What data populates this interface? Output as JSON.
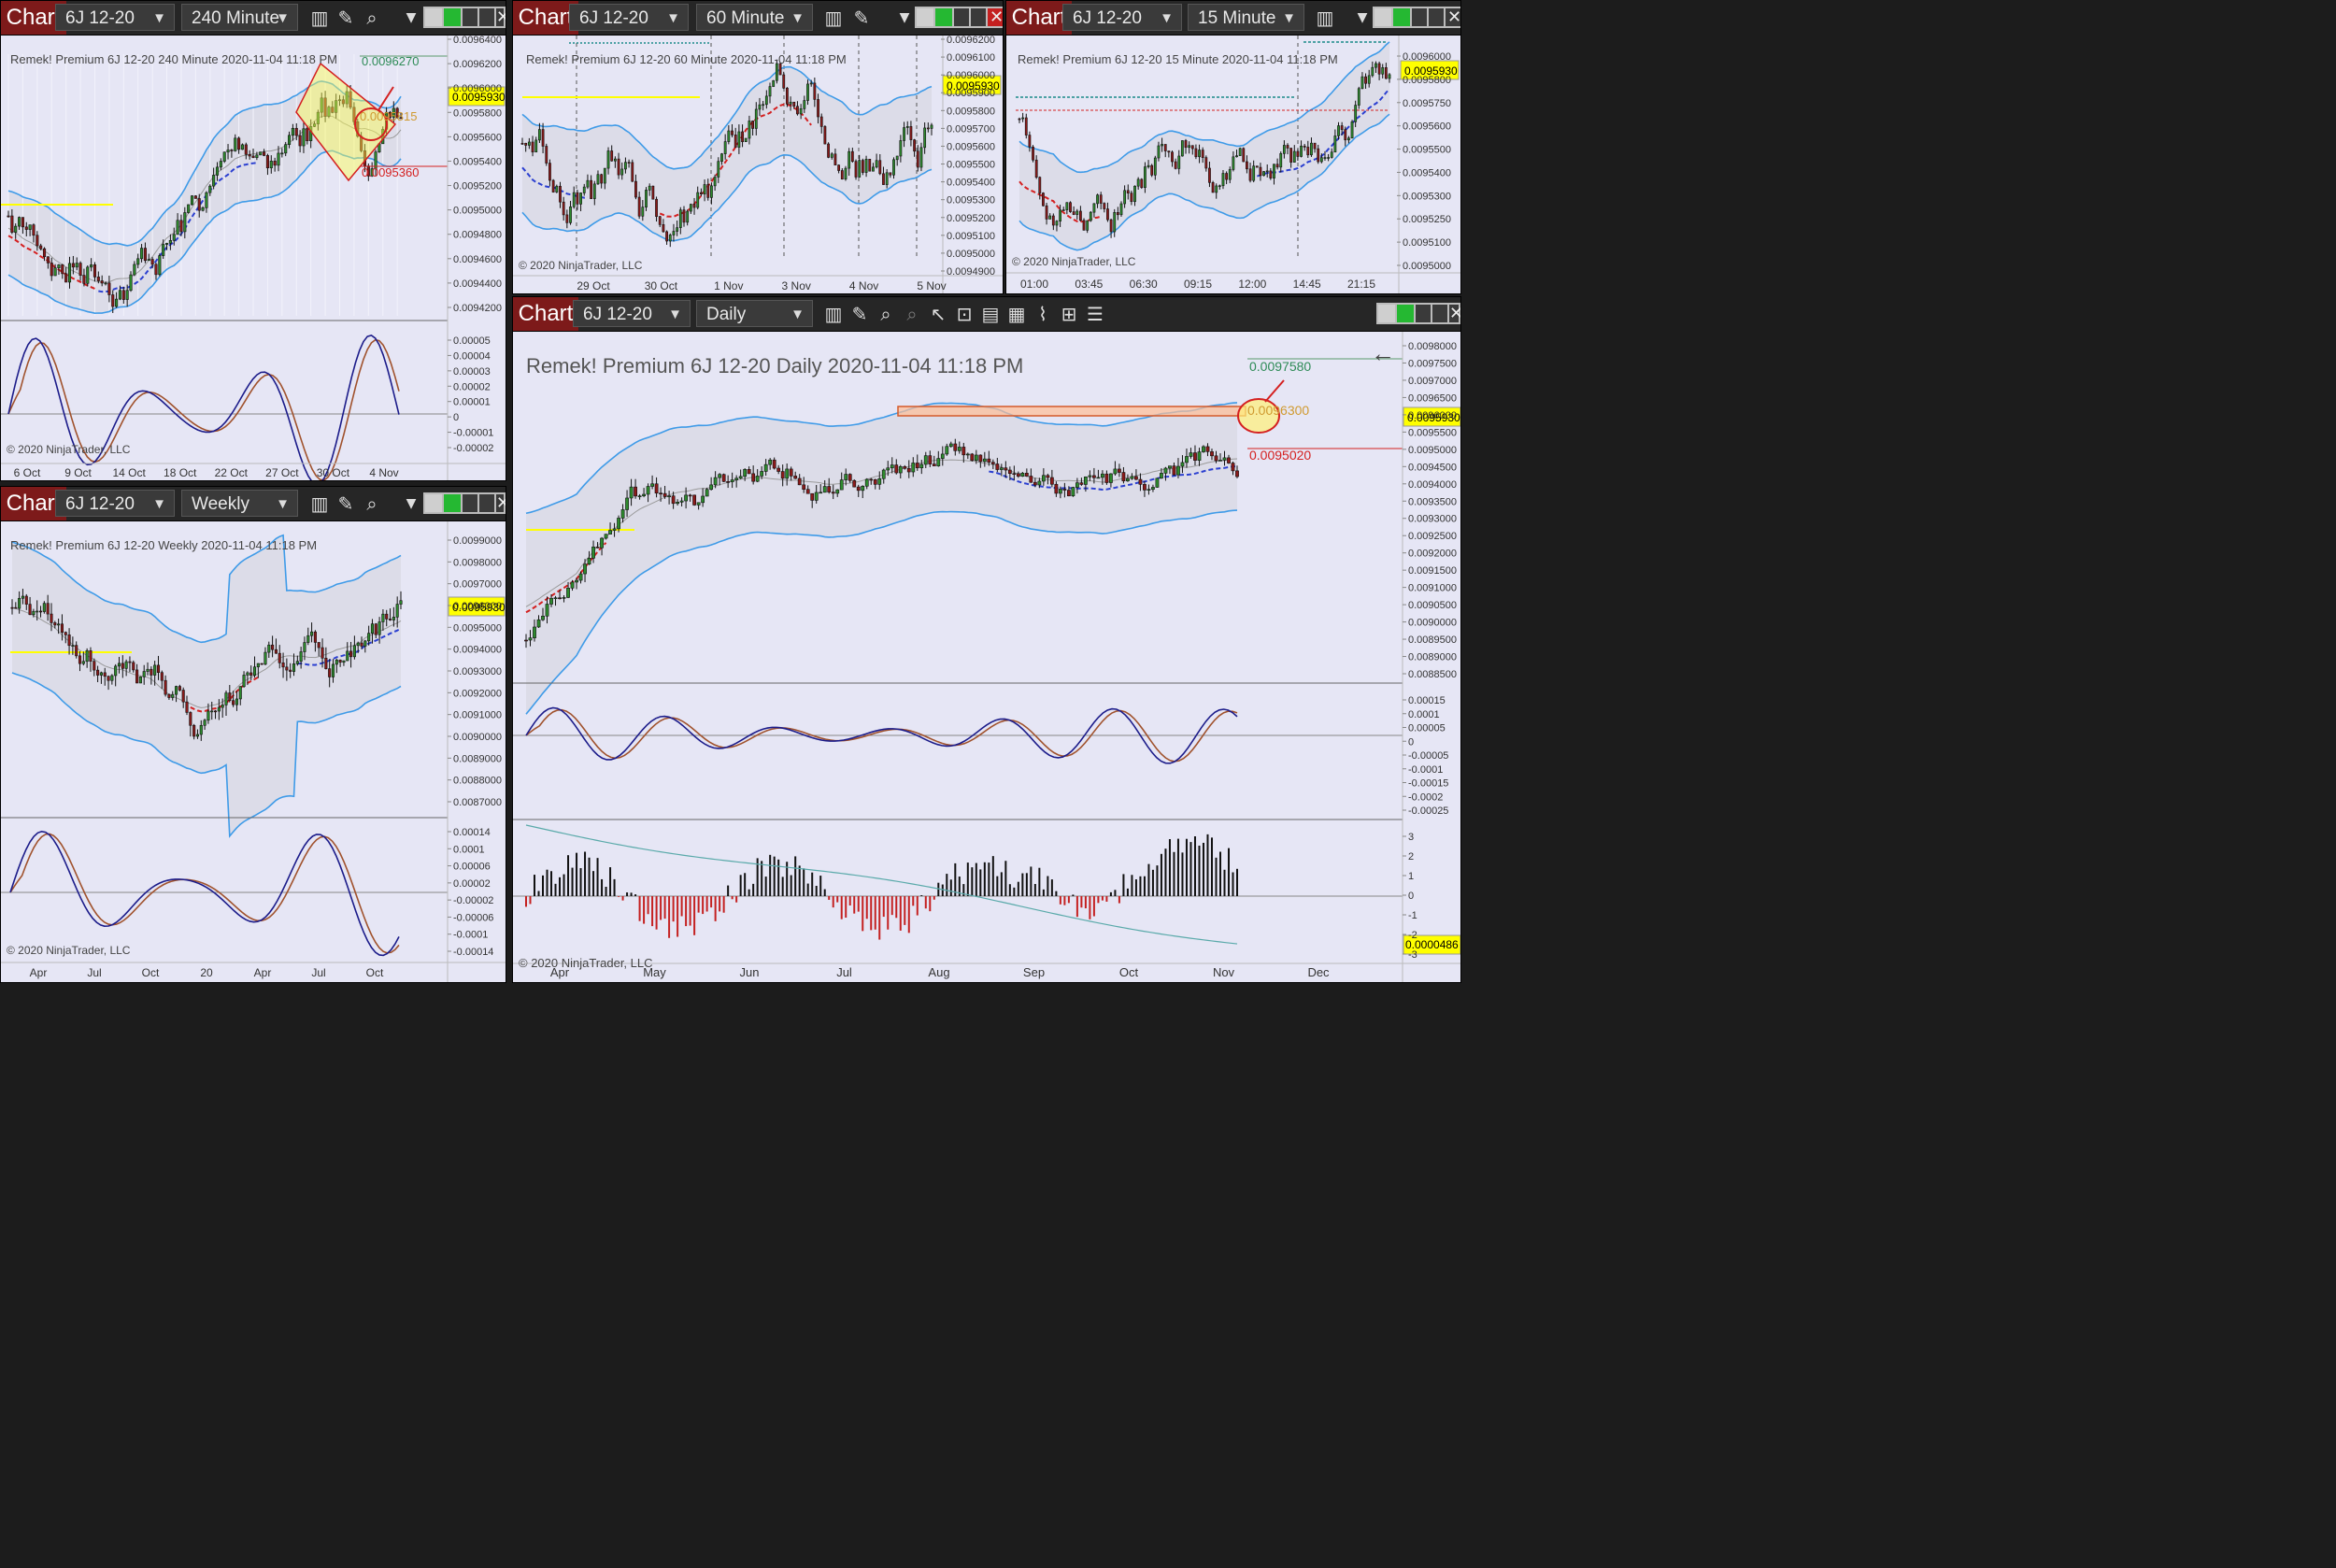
{
  "toolbar": {
    "chart_label": "Chart",
    "instrument": "6J 12-20"
  },
  "windows": {
    "w240": {
      "period": "240 Minute",
      "header": "Remek!  Premium  6J 12-20  240 Minute  2020-11-04 11:18 PM",
      "copyright": "© 2020 NinjaTrader, LLC",
      "price_labels": [
        "0.0096400",
        "0.0096200",
        "0.0096000",
        "0.0095800",
        "0.0095600",
        "0.0095400",
        "0.0095200",
        "0.0095000",
        "0.0094800",
        "0.0094600",
        "0.0094400",
        "0.0094200"
      ],
      "osc_labels": [
        "0.00005",
        "0.00004",
        "0.00003",
        "0.00002",
        "0.00001",
        "0",
        "-0.00001",
        "-0.00002"
      ],
      "x_labels": [
        "6 Oct",
        "9 Oct",
        "14 Oct",
        "18 Oct",
        "22 Oct",
        "27 Oct",
        "30 Oct",
        "4 Nov"
      ],
      "current_price": "0.0095930",
      "target_high": "0.0096270",
      "mid_level": "0.0095815",
      "target_low": "0.0095360"
    },
    "w60": {
      "period": "60 Minute",
      "header": "Remek!  Premium  6J 12-20  60 Minute  2020-11-04 11:18 PM",
      "copyright": "© 2020 NinjaTrader, LLC",
      "price_labels": [
        "0.0096200",
        "0.0096100",
        "0.0096000",
        "0.0095900",
        "0.0095800",
        "0.0095700",
        "0.0095600",
        "0.0095500",
        "0.0095400",
        "0.0095300",
        "0.0095200",
        "0.0095100",
        "0.0095000",
        "0.0094900"
      ],
      "x_labels": [
        "29 Oct",
        "30 Oct",
        "1 Nov",
        "3 Nov",
        "4 Nov",
        "5 Nov"
      ],
      "current_price": "0.0095930"
    },
    "w15": {
      "period": "15 Minute",
      "header": "Remek!  Premium  6J 12-20  15 Minute  2020-11-04 11:18 PM",
      "copyright": "© 2020 NinjaTrader, LLC",
      "price_labels": [
        "0.0096000",
        "0.0095800",
        "0.0095750",
        "0.0095600",
        "0.0095500",
        "0.0095400",
        "0.0095300",
        "0.0095250",
        "0.0095100",
        "0.0095000"
      ],
      "x_labels": [
        "01:00",
        "03:45",
        "06:30",
        "09:15",
        "12:00",
        "14:45",
        "21:15"
      ],
      "current_price": "0.0095930"
    },
    "wWeekly": {
      "period": "Weekly",
      "header": "Remek!  Premium  6J 12-20  Weekly  2020-11-04 11:18 PM",
      "copyright": "© 2020 NinjaTrader, LLC",
      "price_labels": [
        "0.0099000",
        "0.0098000",
        "0.0097000",
        "0.0096000",
        "0.0095000",
        "0.0094000",
        "0.0093000",
        "0.0092000",
        "0.0091000",
        "0.0090000",
        "0.0089000",
        "0.0088000",
        "0.0087000"
      ],
      "osc_labels": [
        "0.00014",
        "0.0001",
        "0.00006",
        "0.00002",
        "-0.00002",
        "-0.00006",
        "-0.0001",
        "-0.00014"
      ],
      "x_labels": [
        "Apr",
        "Jul",
        "Oct",
        "20",
        "Apr",
        "Jul",
        "Oct"
      ],
      "current_price": "0.0095930"
    },
    "wDaily": {
      "period": "Daily",
      "header": "Remek!  Premium  6J 12-20  Daily  2020-11-04 11:18 PM",
      "copyright": "© 2020 NinjaTrader, LLC",
      "price_labels": [
        "0.0098000",
        "0.0097500",
        "0.0097000",
        "0.0096500",
        "0.0096000",
        "0.0095500",
        "0.0095000",
        "0.0094500",
        "0.0094000",
        "0.0093500",
        "0.0093000",
        "0.0092500",
        "0.0092000",
        "0.0091500",
        "0.0091000",
        "0.0090500",
        "0.0090000",
        "0.0089500",
        "0.0089000",
        "0.0088500"
      ],
      "osc_labels": [
        "0.00015",
        "0.0001",
        "0.00005",
        "0",
        "-0.00005",
        "-0.0001",
        "-0.00015",
        "-0.0002",
        "-0.00025"
      ],
      "hist_labels": [
        "3",
        "2",
        "1",
        "0",
        "-1",
        "-2",
        "-3"
      ],
      "x_labels": [
        "Apr",
        "May",
        "Jun",
        "Jul",
        "Aug",
        "Sep",
        "Oct",
        "Nov",
        "Dec"
      ],
      "current_price": "0.0095930",
      "target_high": "0.0097580",
      "mid_level": "0.0096300",
      "target_low": "0.0095020",
      "hist_value": "0.0000486"
    }
  },
  "colors": {
    "panel_bg": "#e6e6f5",
    "band": "#3f9be8",
    "bull": "#2e8b2e",
    "bear": "#8b1a1a",
    "ma": "#9a9a9a",
    "osc_fast": "#1c1c8a",
    "osc_slow": "#a0522d",
    "price_tag": "#ffff00"
  }
}
